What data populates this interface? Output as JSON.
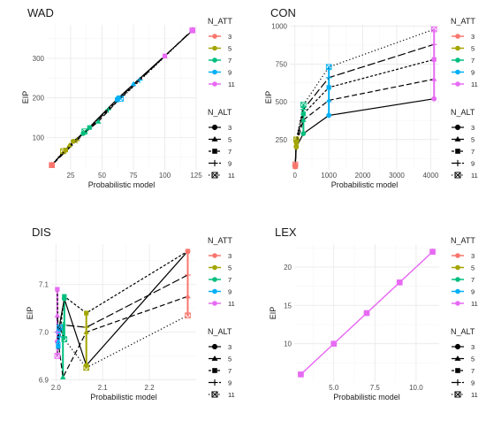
{
  "colors": {
    "att_3": "#F8766D",
    "att_5": "#A3A500",
    "att_7": "#00BF7D",
    "att_9": "#00B0F6",
    "att_11": "#E76BF3"
  },
  "legend": {
    "att_title": "N_ATT",
    "att_levels": [
      "3",
      "5",
      "7",
      "9",
      "11"
    ],
    "alt_title": "N_ALT",
    "alt_levels": [
      "3",
      "5",
      "7",
      "9",
      "11"
    ],
    "alt_shapes": [
      "circle",
      "triangle",
      "square",
      "plus",
      "boxed-x"
    ],
    "alt_linetypes": [
      "solid",
      "dashed",
      "short-dash",
      "long-dash",
      "dotted"
    ]
  },
  "chart_data": [
    {
      "type": "line",
      "title": "WAD",
      "xlabel": "Probabilistic model",
      "ylabel": "EIP",
      "xlim": [
        6,
        125
      ],
      "ylim": [
        18,
        385
      ],
      "xticks": [
        25,
        50,
        75,
        100,
        125
      ],
      "yticks": [
        100,
        200,
        300
      ],
      "xtick_labels": [
        "25",
        "50",
        "75",
        "100",
        "125"
      ],
      "ytick_labels": [
        "100",
        "200",
        "300"
      ],
      "series": [
        {
          "alt": "3",
          "points": [
            [
              10,
              30,
              "3"
            ],
            [
              27,
              90,
              "5"
            ],
            [
              35,
              110,
              "7"
            ],
            [
              63,
              200,
              "9"
            ],
            [
              122,
              370,
              "11"
            ]
          ]
        },
        {
          "alt": "5",
          "points": [
            [
              10,
              30,
              "3"
            ],
            [
              24,
              80,
              "5"
            ],
            [
              47,
              140,
              "7"
            ],
            [
              75,
              235,
              "9"
            ],
            [
              100,
              305,
              "11"
            ]
          ]
        },
        {
          "alt": "7",
          "points": [
            [
              10,
              30,
              "3"
            ],
            [
              21,
              68,
              "5"
            ],
            [
              40,
              125,
              "7"
            ],
            [
              62,
              195,
              "9"
            ],
            [
              100,
              306,
              "11"
            ]
          ]
        },
        {
          "alt": "9",
          "points": [
            [
              10,
              30,
              "3"
            ],
            [
              30,
              92,
              "5"
            ],
            [
              55,
              170,
              "7"
            ],
            [
              80,
              245,
              "9"
            ],
            [
              122,
              372,
              "11"
            ]
          ]
        },
        {
          "alt": "11",
          "points": [
            [
              10,
              30,
              "3"
            ],
            [
              19,
              65,
              "5"
            ],
            [
              36,
              115,
              "7"
            ],
            [
              65,
              198,
              "9"
            ],
            [
              122,
              371,
              "11"
            ]
          ]
        }
      ]
    },
    {
      "type": "line",
      "title": "CON",
      "xlabel": "Probabilistic model",
      "ylabel": "EIP",
      "xlim": [
        -150,
        4250
      ],
      "ylim": [
        50,
        1010
      ],
      "xticks": [
        0,
        1000,
        2000,
        3000,
        4000
      ],
      "yticks": [
        250,
        500,
        750,
        1000
      ],
      "xtick_labels": [
        "0",
        "1000",
        "2000",
        "3000",
        "4000"
      ],
      "ytick_labels": [
        "250",
        "500",
        "750",
        "1000"
      ],
      "series": [
        {
          "alt": "3",
          "points": [
            [
              10,
              70,
              "3"
            ],
            [
              40,
              200,
              "5"
            ],
            [
              250,
              290,
              "7"
            ],
            [
              1000,
              410,
              "9"
            ],
            [
              4100,
              520,
              "11"
            ]
          ]
        },
        {
          "alt": "5",
          "points": [
            [
              10,
              70,
              "3"
            ],
            [
              40,
              220,
              "5"
            ],
            [
              250,
              380,
              "7"
            ],
            [
              1000,
              510,
              "9"
            ],
            [
              4100,
              650,
              "11"
            ]
          ]
        },
        {
          "alt": "7",
          "points": [
            [
              10,
              75,
              "3"
            ],
            [
              40,
              235,
              "5"
            ],
            [
              250,
              420,
              "7"
            ],
            [
              1000,
              595,
              "9"
            ],
            [
              4100,
              780,
              "11"
            ]
          ]
        },
        {
          "alt": "9",
          "points": [
            [
              10,
              80,
              "3"
            ],
            [
              40,
              245,
              "5"
            ],
            [
              250,
              450,
              "7"
            ],
            [
              1000,
              660,
              "9"
            ],
            [
              4100,
              880,
              "11"
            ]
          ]
        },
        {
          "alt": "11",
          "points": [
            [
              10,
              85,
              "3"
            ],
            [
              40,
              250,
              "5"
            ],
            [
              250,
              480,
              "7"
            ],
            [
              1000,
              730,
              "9"
            ],
            [
              4100,
              980,
              "11"
            ]
          ]
        }
      ]
    },
    {
      "type": "line",
      "title": "DIS",
      "xlabel": "Probabilistic model",
      "ylabel": "EIP",
      "xlim": [
        1.99,
        2.3
      ],
      "ylim": [
        6.895,
        7.185
      ],
      "xticks": [
        2.0,
        2.1,
        2.2
      ],
      "yticks": [
        6.9,
        7.0,
        7.1
      ],
      "xtick_labels": [
        "2.0",
        "2.1",
        "2.2"
      ],
      "ytick_labels": [
        "6.9",
        "7.0",
        "7.1"
      ],
      "series": [
        {
          "alt": "3",
          "points": [
            [
              2.003,
              6.98,
              "11"
            ],
            [
              2.005,
              7.0,
              "9"
            ],
            [
              2.018,
              7.07,
              "7"
            ],
            [
              2.065,
              6.93,
              "5"
            ],
            [
              2.282,
              7.17,
              "3"
            ]
          ]
        },
        {
          "alt": "5",
          "points": [
            [
              2.003,
              7.035,
              "11"
            ],
            [
              2.005,
              6.98,
              "9"
            ],
            [
              2.015,
              6.905,
              "7"
            ],
            [
              2.065,
              7.0,
              "5"
            ],
            [
              2.282,
              7.075,
              "3"
            ]
          ]
        },
        {
          "alt": "7",
          "points": [
            [
              2.003,
              7.09,
              "11"
            ],
            [
              2.005,
              6.97,
              "9"
            ],
            [
              2.018,
              7.075,
              "7"
            ],
            [
              2.065,
              7.04,
              "5"
            ],
            [
              2.282,
              7.17,
              "3"
            ]
          ]
        },
        {
          "alt": "9",
          "points": [
            [
              2.003,
              7.0,
              "11"
            ],
            [
              2.008,
              6.99,
              "9"
            ],
            [
              2.015,
              7.015,
              "7"
            ],
            [
              2.065,
              7.01,
              "5"
            ],
            [
              2.282,
              7.12,
              "3"
            ]
          ]
        },
        {
          "alt": "11",
          "points": [
            [
              2.003,
              6.95,
              "11"
            ],
            [
              2.008,
              7.01,
              "9"
            ],
            [
              2.018,
              6.985,
              "7"
            ],
            [
              2.065,
              6.925,
              "5"
            ],
            [
              2.282,
              7.035,
              "3"
            ]
          ]
        }
      ]
    },
    {
      "type": "line",
      "title": "LEX",
      "xlabel": "Probabilistic model",
      "ylabel": "EIP",
      "xlim": [
        2.6,
        11.4
      ],
      "ylim": [
        5.0,
        23.0
      ],
      "xticks": [
        5.0,
        7.5,
        10.0
      ],
      "yticks": [
        10,
        15,
        20
      ],
      "xtick_labels": [
        "5.0",
        "7.5",
        "10.0"
      ],
      "ytick_labels": [
        "10",
        "15",
        "20"
      ],
      "series": [
        {
          "alt": "3",
          "points": [
            [
              3,
              6,
              "11"
            ],
            [
              5,
              10,
              "11"
            ],
            [
              7,
              14,
              "11"
            ],
            [
              9,
              18,
              "11"
            ],
            [
              11,
              22,
              "11"
            ]
          ]
        },
        {
          "alt": "5",
          "points": [
            [
              3,
              6,
              "11"
            ],
            [
              5,
              10,
              "11"
            ],
            [
              7,
              14,
              "11"
            ],
            [
              9,
              18,
              "11"
            ],
            [
              11,
              22,
              "11"
            ]
          ]
        },
        {
          "alt": "7",
          "points": [
            [
              3,
              6,
              "11"
            ],
            [
              5,
              10,
              "11"
            ],
            [
              7,
              14,
              "11"
            ],
            [
              9,
              18,
              "11"
            ],
            [
              11,
              22,
              "11"
            ]
          ]
        },
        {
          "alt": "9",
          "points": [
            [
              3,
              6,
              "11"
            ],
            [
              5,
              10,
              "11"
            ],
            [
              7,
              14,
              "11"
            ],
            [
              9,
              18,
              "11"
            ],
            [
              11,
              22,
              "11"
            ]
          ]
        },
        {
          "alt": "11",
          "points": [
            [
              3,
              6,
              "11"
            ],
            [
              5,
              10,
              "11"
            ],
            [
              7,
              14,
              "11"
            ],
            [
              9,
              18,
              "11"
            ],
            [
              11,
              22,
              "11"
            ]
          ]
        }
      ]
    }
  ]
}
